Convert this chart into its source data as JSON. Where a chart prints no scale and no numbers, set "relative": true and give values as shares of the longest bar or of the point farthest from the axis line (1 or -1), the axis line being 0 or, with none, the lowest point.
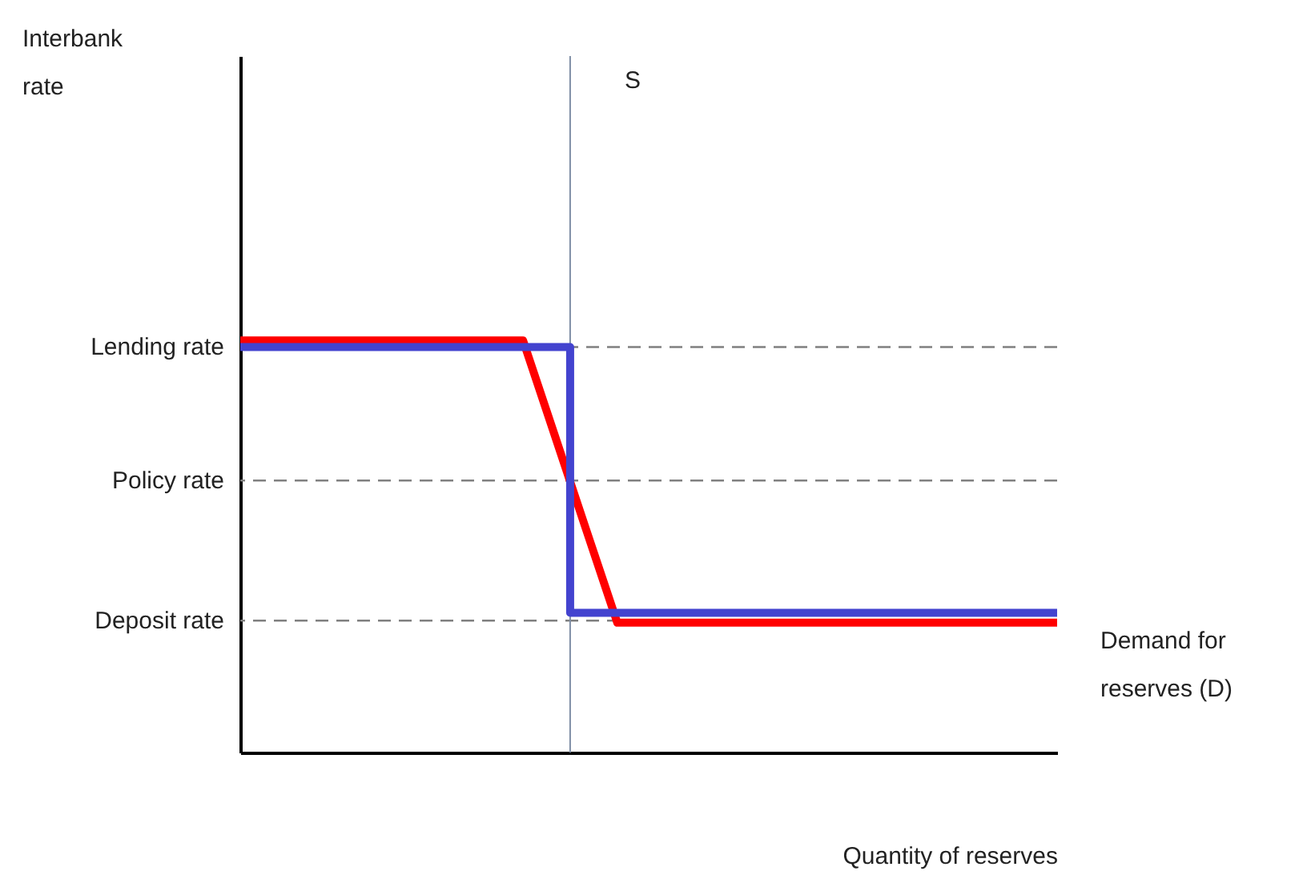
{
  "chart_data": {
    "type": "line",
    "relative": true,
    "xlabel": "Quantity of reserves",
    "grid": false,
    "marker": "none",
    "line_style": "solid",
    "categories": [
      null,
      null,
      null,
      null,
      null,
      null,
      null,
      null,
      null,
      null,
      null,
      null,
      null,
      null,
      null,
      null,
      null,
      null,
      null,
      null,
      null,
      null,
      null,
      null,
      null,
      null,
      null
    ],
    "series": [
      {
        "type": "line",
        "color": "#ff0000",
        "values": [
          1,
          1,
          1,
          1,
          1,
          1,
          1,
          1,
          1,
          1,
          0.772,
          0.543,
          0.315,
          0.315,
          0.315,
          0.315,
          0.315,
          0.315,
          0.315,
          0.315,
          0.315,
          0.315,
          0.315,
          0.315,
          0.315,
          0.315,
          0.315
        ]
      },
      {
        "type": "step",
        "color": "#4343cf",
        "values": [
          0.984,
          0.984,
          0.984,
          0.984,
          0.984,
          0.984,
          0.984,
          0.984,
          0.984,
          0.984,
          0.984,
          0.339,
          0.339,
          0.339,
          0.339,
          0.339,
          0.339,
          0.339,
          0.339,
          0.339,
          0.339,
          0.339,
          0.339,
          0.339,
          0.339,
          0.339,
          0.339
        ]
      }
    ],
    "ref_lines": [
      {
        "axis": "y",
        "value": 0.984,
        "label": "Lending rate",
        "color": "#808080",
        "line_style": "dashed"
      },
      {
        "axis": "y",
        "value": 0.66,
        "label": "Policy rate",
        "color": "#808080",
        "line_style": "dashed"
      },
      {
        "axis": "y",
        "value": 0.32,
        "label": "Deposit rate",
        "color": "#808080",
        "line_style": "dashed"
      }
    ],
    "annotations": [
      "Interbank rate",
      "S",
      "Demand for reserves (D)"
    ]
  }
}
